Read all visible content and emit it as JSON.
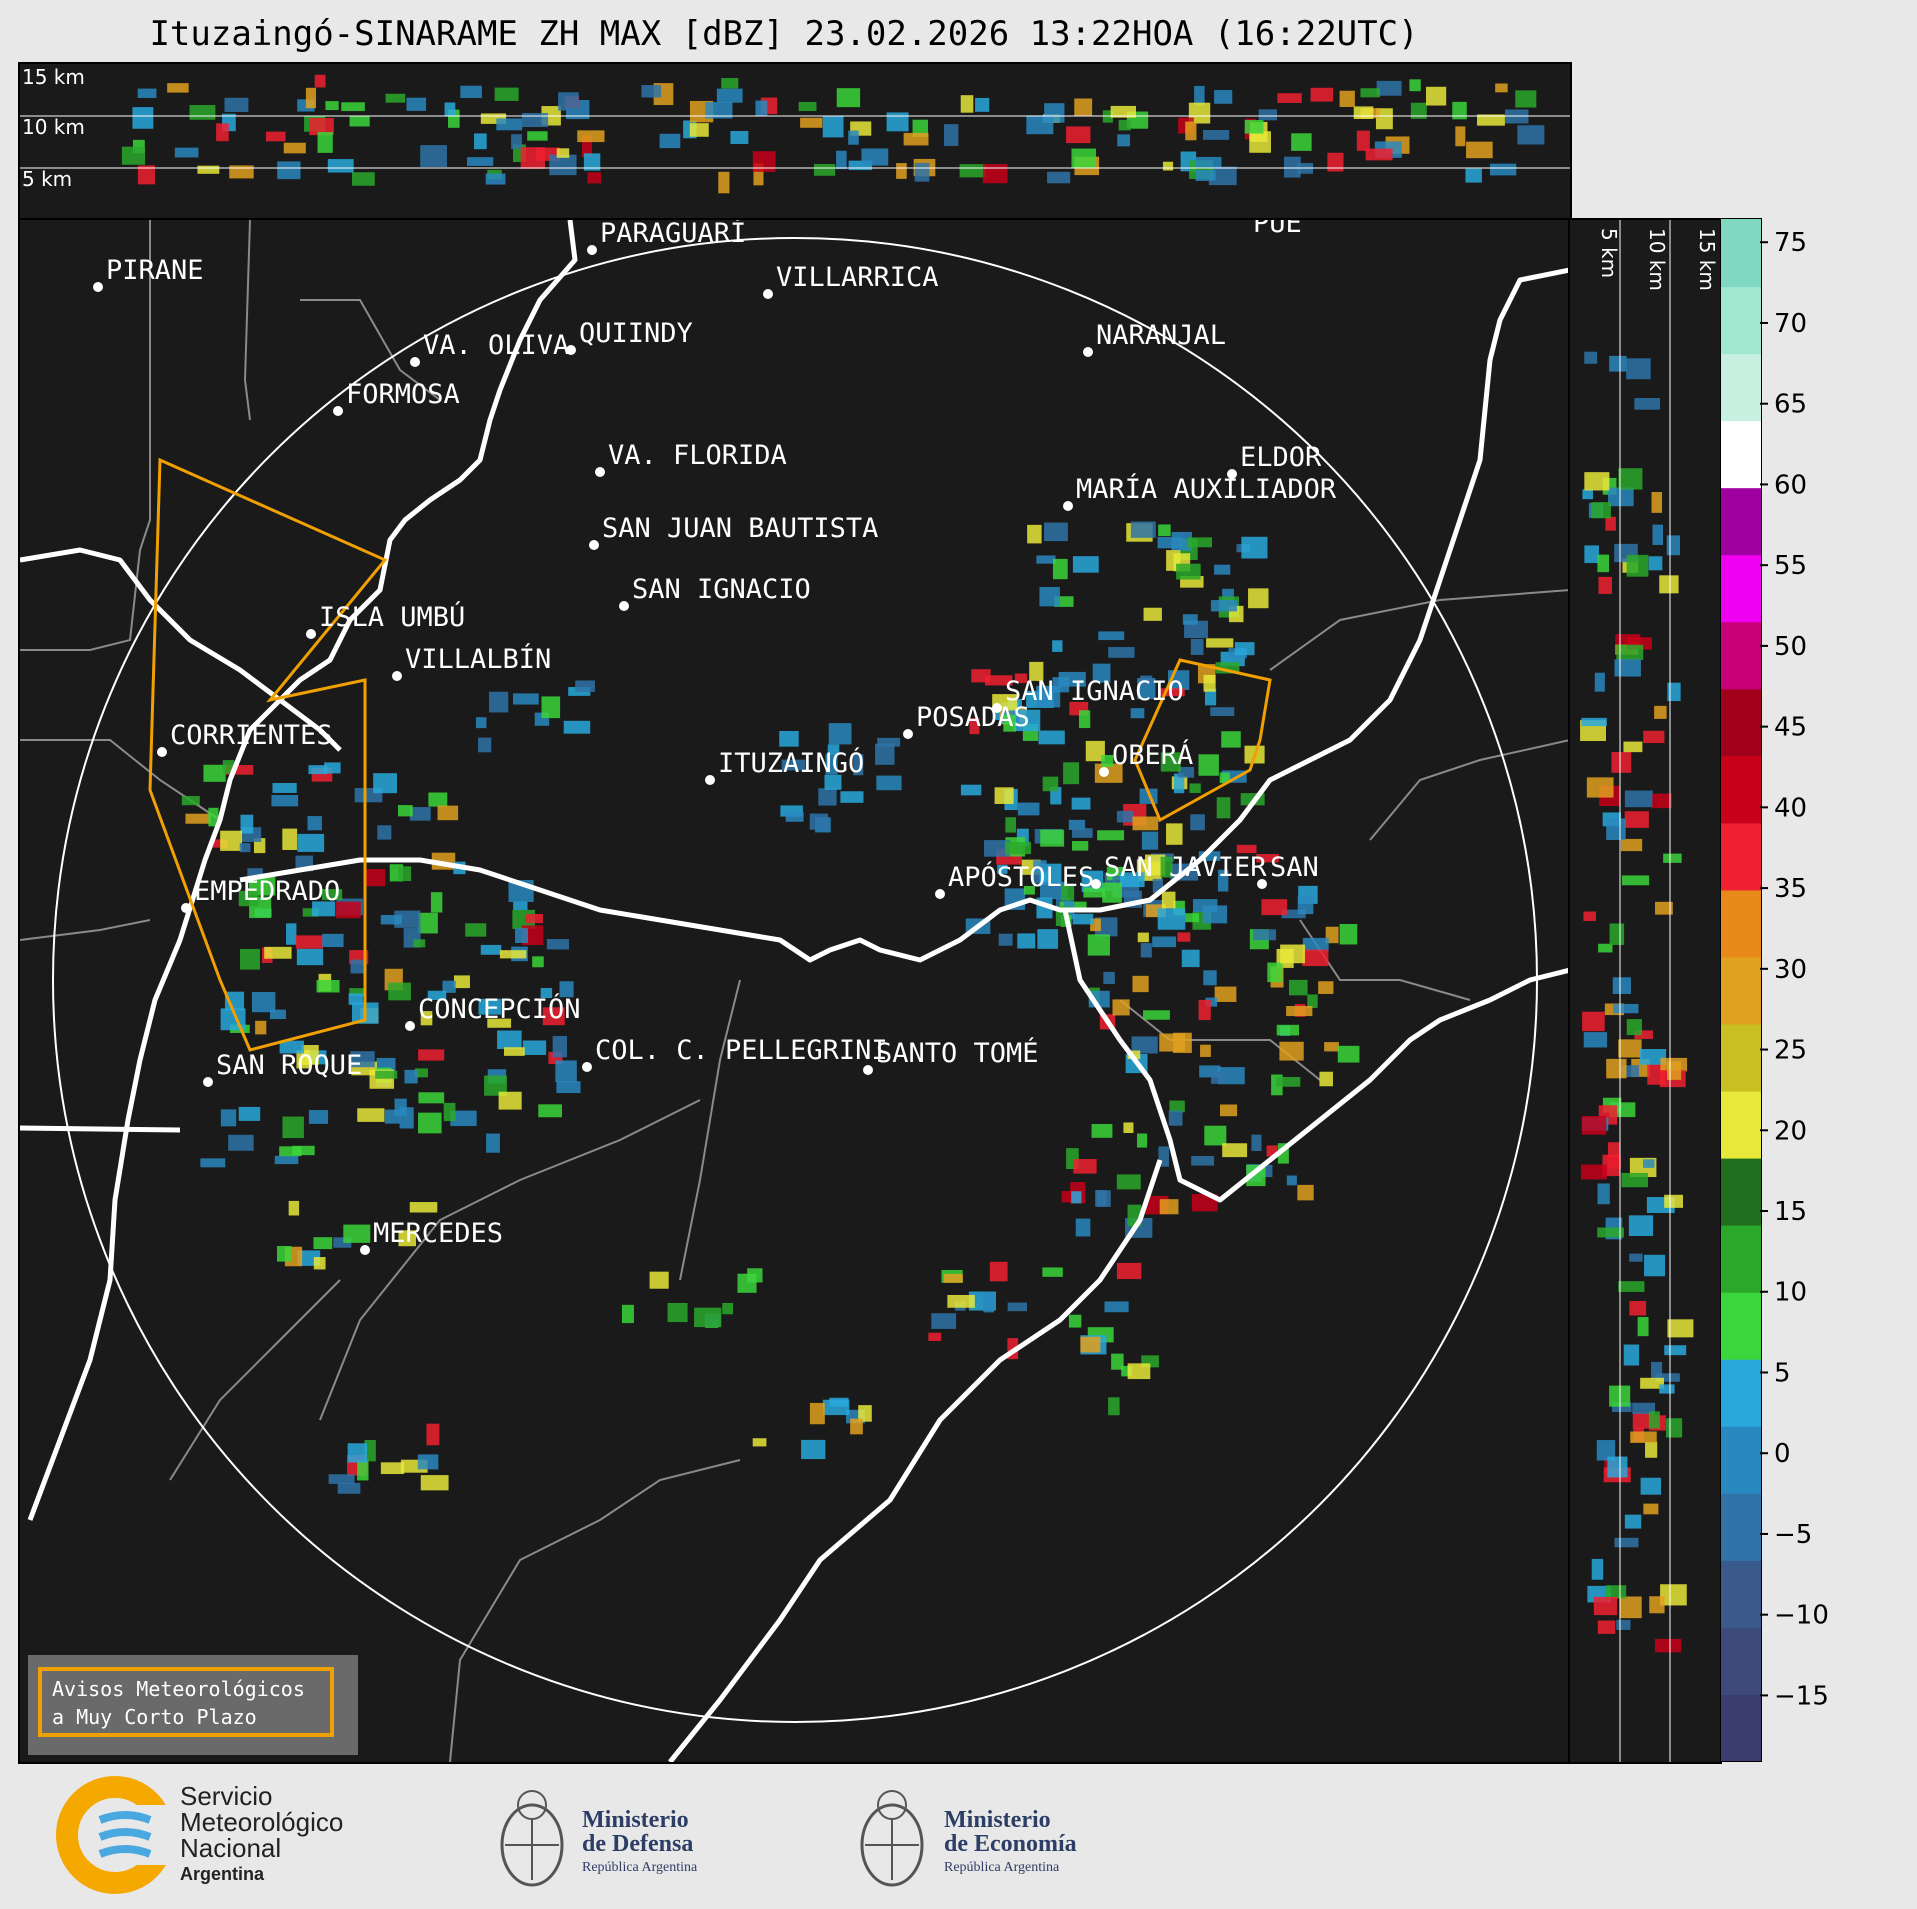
{
  "title": "Ituzaingó-SINARAME ZH MAX [dBZ] 23.02.2026 13:22HOA (16:22UTC)",
  "top_panel": {
    "height_labels": [
      "15 km",
      "10 km",
      "5 km"
    ]
  },
  "side_panel": {
    "height_labels": [
      "5 km",
      "10 km",
      "15 km"
    ]
  },
  "cities": [
    {
      "name": "PIRANE"
    },
    {
      "name": "PARAGUARÍ"
    },
    {
      "name": "VILLARRICA"
    },
    {
      "name": "VA. OLIVA"
    },
    {
      "name": "QUIINDY"
    },
    {
      "name": "NARANJAL"
    },
    {
      "name": "FORMOSA"
    },
    {
      "name": "VA. FLORIDA"
    },
    {
      "name": "ELDOR"
    },
    {
      "name": "MARÍA AUXILIADOR"
    },
    {
      "name": "SAN JUAN BAUTISTA"
    },
    {
      "name": "SAN IGNACIO"
    },
    {
      "name": "ISLA UMBÚ"
    },
    {
      "name": "VILLALBÍN"
    },
    {
      "name": "SAN IGNACIO"
    },
    {
      "name": "POSADAS"
    },
    {
      "name": "CORRIENTES"
    },
    {
      "name": "ITUZAINGÓ"
    },
    {
      "name": "OBERÁ"
    },
    {
      "name": "APÓSTOLES"
    },
    {
      "name": "SAN JAVIER"
    },
    {
      "name": "SAN"
    },
    {
      "name": "EMPEDRADO"
    },
    {
      "name": "CONCEPCIÓN"
    },
    {
      "name": "COL. C. PELLEGRINI"
    },
    {
      "name": "SANTO TOMÉ"
    },
    {
      "name": "SAN ROQUE"
    },
    {
      "name": "MERCEDES"
    },
    {
      "name": "PUE"
    }
  ],
  "colorbar": {
    "unit": "dBZ",
    "ticks": [
      "75",
      "70",
      "65",
      "60",
      "55",
      "50",
      "45",
      "40",
      "35",
      "30",
      "25",
      "20",
      "15",
      "10",
      "5",
      "0",
      "−5",
      "−10",
      "−15"
    ],
    "range": [
      -19,
      76.5
    ],
    "colors": [
      "#3a3d6e",
      "#3e4a7a",
      "#3a5a8c",
      "#2f73a8",
      "#2a88c0",
      "#29a8dc",
      "#3bd63b",
      "#2aa82a",
      "#1e6e1e",
      "#e8e83a",
      "#c8c020",
      "#e0a020",
      "#e88a1a",
      "#f02030",
      "#c8001a",
      "#a0001a",
      "#c80078",
      "#f000f0",
      "#a000a0",
      "#ffffff",
      "#c8f0e0",
      "#a0e8d0",
      "#80d8c0"
    ]
  },
  "warning_legend": {
    "line1": "Avisos Meteorológicos",
    "line2": "a Muy Corto Plazo",
    "color": "#f0a000"
  },
  "footer": {
    "smn_line1": "Servicio",
    "smn_line2": "Meteorológico",
    "smn_line3": "Nacional",
    "smn_line4": "Argentina",
    "defensa_line1": "Ministerio",
    "defensa_line2": "de Defensa",
    "defensa_line3": "República Argentina",
    "economia_line1": "Ministerio",
    "economia_line2": "de Economía",
    "economia_line3": "República Argentina"
  },
  "colors": {
    "background": "#1a1a1a",
    "range_ring": "#ffffff",
    "river": "#ffffff",
    "border": "#8a8a8a",
    "warning": "#f0a000"
  }
}
